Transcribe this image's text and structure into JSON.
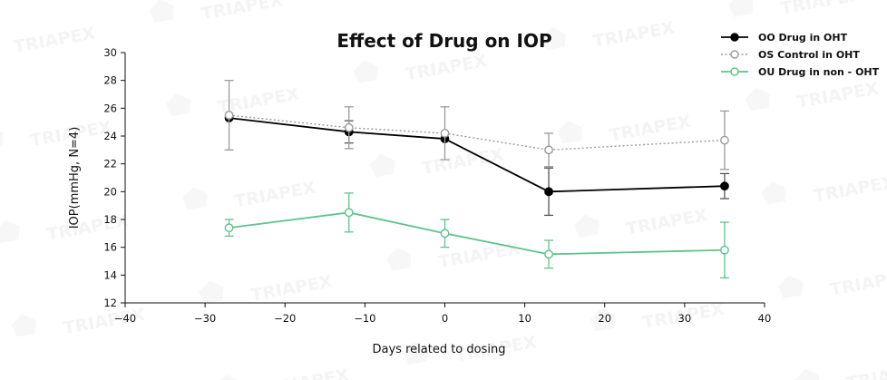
{
  "chart_data": {
    "type": "line",
    "title": "Effect of Drug on IOP",
    "xlabel": "Days related to dosing",
    "ylabel": "IOP(mmHg, N=4)",
    "xlim": [
      -40,
      40
    ],
    "ylim": [
      12,
      30
    ],
    "x_ticks": [
      -40,
      -30,
      -20,
      -10,
      0,
      10,
      20,
      30,
      40
    ],
    "x_tick_labels": [
      "−40",
      "−30",
      "−20",
      "−10",
      "0",
      "10",
      "20",
      "30",
      "40"
    ],
    "y_ticks": [
      12,
      14,
      16,
      18,
      20,
      22,
      24,
      26,
      28,
      30
    ],
    "grid": false,
    "legend_position": "top-right",
    "watermark": "TRIAPEX",
    "series": [
      {
        "name": "OO Drug in OHT",
        "color": "#000000",
        "line_style": "solid",
        "marker": "filled-circle",
        "x": [
          -27,
          -12,
          0,
          13,
          35
        ],
        "y": [
          25.3,
          24.3,
          23.8,
          20.0,
          20.4
        ],
        "err": [
          null,
          0.8,
          null,
          1.7,
          0.9
        ]
      },
      {
        "name": "OS Control in OHT",
        "color": "#9a9a9a",
        "line_style": "dotted",
        "marker": "open-circle",
        "x": [
          -27,
          -12,
          0,
          13,
          35
        ],
        "y": [
          25.5,
          24.6,
          24.2,
          23.0,
          23.7
        ],
        "err": [
          2.5,
          1.5,
          1.9,
          1.2,
          2.1
        ]
      },
      {
        "name": "OU Drug in non - OHT",
        "color": "#5cc48a",
        "line_style": "solid",
        "marker": "open-circle",
        "x": [
          -27,
          -12,
          0,
          13,
          35
        ],
        "y": [
          17.4,
          18.5,
          17.0,
          15.5,
          15.8
        ],
        "err": [
          0.6,
          1.4,
          1.0,
          1.0,
          2.0
        ]
      }
    ]
  }
}
